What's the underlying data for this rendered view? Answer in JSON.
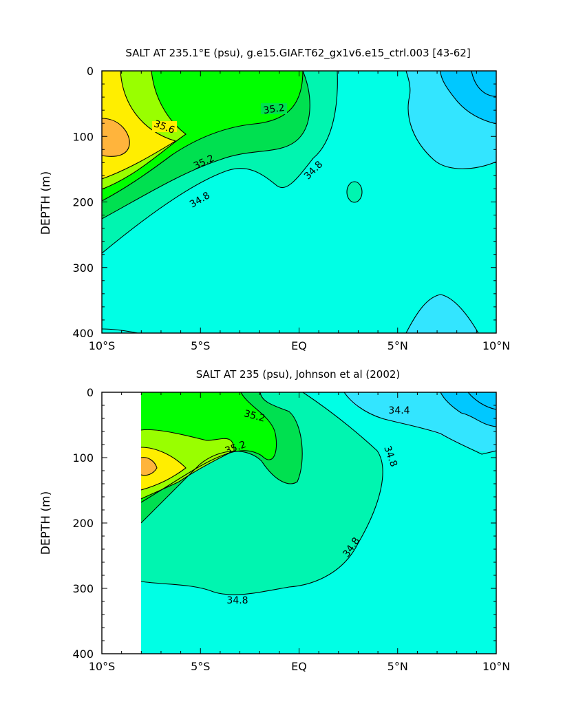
{
  "chart_data": [
    {
      "type": "contour",
      "title": "SALT AT 235.1°E (psu), g.e15.GIAF.T62_gx1v6.e15_ctrl.003 [43-62]",
      "ylabel": "DEPTH (m)",
      "xlabel": "",
      "x_ticks": [
        "10°S",
        "5°S",
        "EQ",
        "5°N",
        "10°N"
      ],
      "y_ticks": [
        "0",
        "100",
        "200",
        "300",
        "400"
      ],
      "xlim": [
        -10,
        10
      ],
      "ylim": [
        400,
        0
      ],
      "contour_labels": [
        "35.2",
        "35.6",
        "35.2",
        "34.8",
        "34.8"
      ],
      "levels": [
        34.2,
        34.4,
        34.6,
        34.8,
        35.0,
        35.2,
        35.4,
        35.6,
        35.8
      ]
    },
    {
      "type": "contour",
      "title": "SALT AT 235 (psu), Johnson et al (2002)",
      "ylabel": "DEPTH (m)",
      "xlabel": "",
      "x_ticks": [
        "10°S",
        "5°S",
        "EQ",
        "5°N",
        "10°N"
      ],
      "y_ticks": [
        "0",
        "100",
        "200",
        "300",
        "400"
      ],
      "xlim": [
        -10,
        10
      ],
      "ylim": [
        400,
        0
      ],
      "contour_labels": [
        "35.2",
        "35.2",
        "34.4",
        "34.8",
        "34.8",
        "34.8"
      ],
      "levels": [
        34.2,
        34.4,
        34.6,
        34.8,
        35.0,
        35.2,
        35.4,
        35.6,
        35.8
      ]
    }
  ],
  "colors": {
    "s34_2": "#00c8ff",
    "s34_4": "#33e5ff",
    "s34_6": "#00ffe5",
    "s34_8": "#00f5b0",
    "s35_0": "#00e050",
    "s35_2": "#00ff00",
    "s35_4": "#99ff00",
    "s35_6": "#ffee00",
    "s35_8": "#ffb43c"
  }
}
